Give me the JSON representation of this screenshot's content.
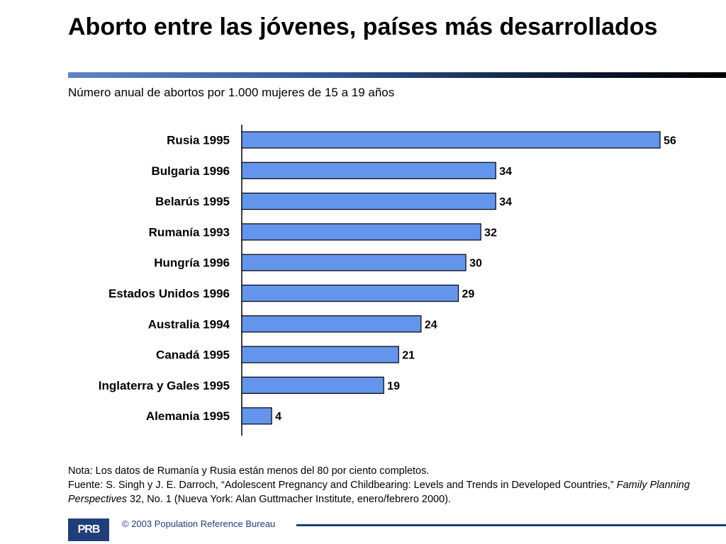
{
  "title": "Aborto entre las jóvenes, países más desarrollados",
  "subtitle": "Número anual de abortos por 1.000 mujeres de 15 a 19 años",
  "note": {
    "line1": "Nota: Los datos de Rumanía y Rusia están menos del 80 por ciento completos.",
    "source_prefix": "Fuente: S. Singh y J. E. Darroch, “Adolescent Pregnancy and Childbearing: Levels and Trends in Developed Countries,” ",
    "source_journal": "Family Planning Perspectives",
    "source_suffix": " 32, No. 1 (Nueva York: Alan Guttmacher Institute, enero/febrero 2000)."
  },
  "footer": {
    "logo_text": "PRB",
    "copyright": "© 2003 Population Reference Bureau"
  },
  "colors": {
    "bar_fill": "#6495ed",
    "bar_stroke": "#000000",
    "accent": "#1f3e7a"
  },
  "chart_data": {
    "type": "bar",
    "orientation": "horizontal",
    "categories": [
      "Rusia 1995",
      "Bulgaria 1996",
      "Belarús 1995",
      "Rumanía 1993",
      "Hungría 1996",
      "Estados Unidos 1996",
      "Australia 1994",
      "Canadá 1995",
      "Inglaterra y Gales 1995",
      "Alemania 1995"
    ],
    "values": [
      56,
      34,
      34,
      32,
      30,
      29,
      24,
      21,
      19,
      4
    ],
    "data_labels": true,
    "xlim": [
      0,
      60
    ],
    "grid": false
  }
}
